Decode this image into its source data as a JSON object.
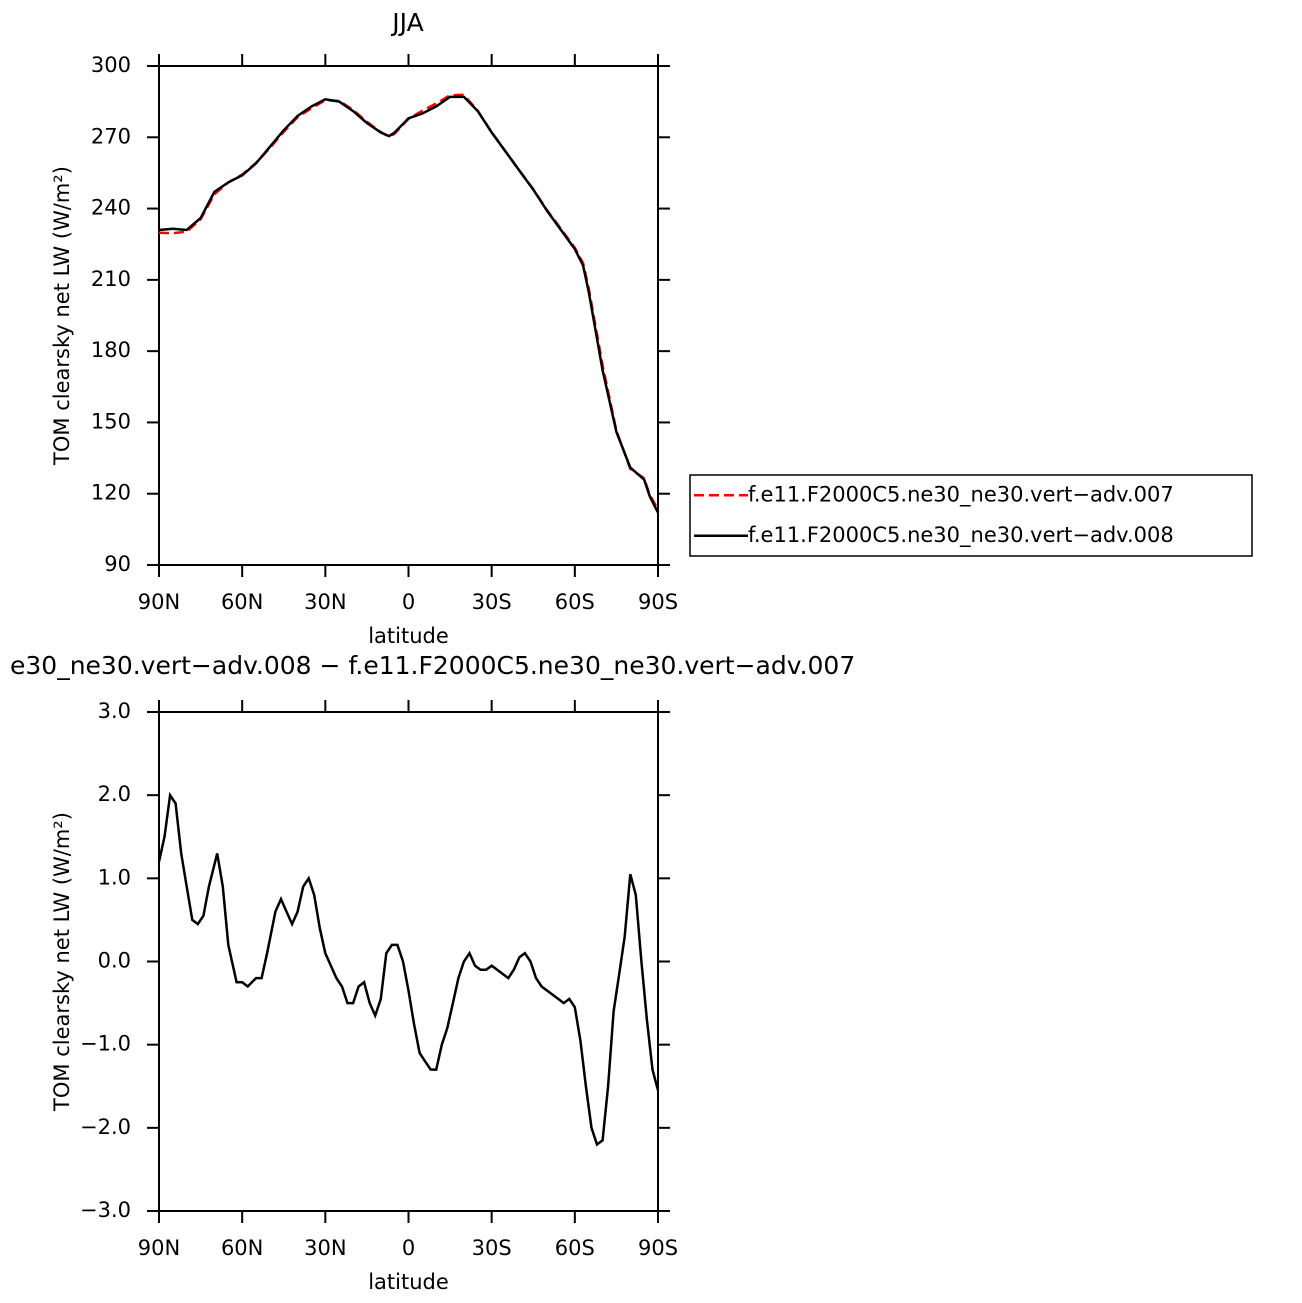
{
  "chart_data": [
    {
      "type": "line",
      "title": "JJA",
      "xlabel": "latitude",
      "ylabel": "TOM clearsky net LW (W/m²)",
      "xlim": [
        90,
        -90
      ],
      "xticks": [
        {
          "value": 90,
          "label": "90N"
        },
        {
          "value": 60,
          "label": "60N"
        },
        {
          "value": 30,
          "label": "30N"
        },
        0,
        {
          "value": -30,
          "label": "30S"
        },
        {
          "value": -60,
          "label": "60S"
        },
        {
          "value": -90,
          "label": "90S"
        }
      ],
      "ylim": [
        90,
        300
      ],
      "yticks": [
        90,
        120,
        150,
        180,
        210,
        240,
        270,
        300
      ],
      "legend": "right",
      "x": [
        90,
        85,
        80,
        75,
        70,
        65,
        60,
        55,
        50,
        45,
        40,
        35,
        30,
        25,
        20,
        15,
        10,
        7,
        5,
        0,
        -5,
        -10,
        -15,
        -20,
        -25,
        -30,
        -35,
        -40,
        -45,
        -50,
        -55,
        -60,
        -63,
        -65,
        -70,
        -75,
        -80,
        -85,
        -87,
        -90
      ],
      "series": [
        {
          "name": "f.e11.F2000C5.ne30_ne30.vert−adv.007",
          "color": "#ff0000",
          "line_style": "dashed",
          "values": [
            229.8,
            229.6,
            230.3,
            235.5,
            246,
            251,
            254.3,
            259.2,
            265.5,
            272.3,
            278.5,
            282.2,
            285.6,
            285.3,
            281.5,
            276.5,
            272.2,
            270.3,
            271.5,
            277.8,
            281.2,
            284.2,
            287.7,
            287.9,
            281.1,
            272.1,
            264.1,
            256,
            248.1,
            239.3,
            231.4,
            223.5,
            217,
            206.5,
            174,
            146.5,
            130.5,
            126.5,
            119.5,
            113.5
          ]
        },
        {
          "name": "f.e11.F2000C5.ne30_ne30.vert−adv.008",
          "color": "#000000",
          "line_style": "solid",
          "values": [
            231,
            231.5,
            231,
            236,
            247,
            251,
            254,
            259,
            266,
            273,
            279,
            283,
            286,
            285,
            281,
            276,
            272,
            270.5,
            272,
            278,
            280,
            283,
            287,
            287,
            281,
            272,
            264,
            256,
            248,
            239,
            231,
            223,
            216,
            205,
            172,
            146,
            131,
            126,
            119,
            112
          ]
        }
      ]
    },
    {
      "type": "line",
      "title": "e30_ne30.vert−adv.008 − f.e11.F2000C5.ne30_ne30.vert−adv.007",
      "xlabel": "latitude",
      "ylabel": "TOM clearsky net LW (W/m²)",
      "xlim": [
        90,
        -90
      ],
      "xticks": [
        {
          "value": 90,
          "label": "90N"
        },
        {
          "value": 60,
          "label": "60N"
        },
        {
          "value": 30,
          "label": "30N"
        },
        0,
        {
          "value": -30,
          "label": "30S"
        },
        {
          "value": -60,
          "label": "60S"
        },
        {
          "value": -90,
          "label": "90S"
        }
      ],
      "ylim": [
        -3,
        3
      ],
      "yticks": [
        {
          "value": -3,
          "label": "−3.0"
        },
        {
          "value": -2,
          "label": "−2.0"
        },
        {
          "value": -1,
          "label": "−1.0"
        },
        {
          "value": 0,
          "label": "0.0"
        },
        {
          "value": 1,
          "label": "1.0"
        },
        {
          "value": 2,
          "label": "2.0"
        },
        {
          "value": 3,
          "label": "3.0"
        }
      ],
      "x": [
        90,
        88,
        86,
        84,
        82,
        80,
        78,
        76,
        74,
        72,
        69,
        67,
        65,
        62,
        60,
        58,
        55,
        53,
        51,
        48,
        46,
        44,
        42,
        40,
        38,
        36,
        34,
        32,
        30,
        28,
        26,
        24,
        22,
        20,
        18,
        16,
        14,
        12,
        10,
        8,
        6,
        4,
        2,
        0,
        -2,
        -4,
        -6,
        -8,
        -10,
        -12,
        -14,
        -16,
        -18,
        -20,
        -22,
        -24,
        -26,
        -28,
        -30,
        -32,
        -34,
        -36,
        -38,
        -40,
        -42,
        -44,
        -46,
        -48,
        -50,
        -52,
        -54,
        -56,
        -58,
        -60,
        -62,
        -64,
        -66,
        -68,
        -70,
        -72,
        -74,
        -76,
        -78,
        -80,
        -82,
        -84,
        -86,
        -88,
        -90
      ],
      "series": [
        {
          "name": null,
          "color": "#000000",
          "line_style": "solid",
          "values": [
            1.2,
            1.5,
            2.0,
            1.9,
            1.3,
            0.9,
            0.5,
            0.45,
            0.55,
            0.9,
            1.3,
            0.9,
            0.2,
            -0.25,
            -0.25,
            -0.3,
            -0.2,
            -0.2,
            0.1,
            0.6,
            0.75,
            0.6,
            0.45,
            0.6,
            0.9,
            1.0,
            0.8,
            0.4,
            0.1,
            -0.05,
            -0.2,
            -0.3,
            -0.5,
            -0.5,
            -0.3,
            -0.25,
            -0.5,
            -0.65,
            -0.45,
            0.1,
            0.2,
            0.2,
            0.0,
            -0.35,
            -0.75,
            -1.1,
            -1.2,
            -1.3,
            -1.3,
            -1.0,
            -0.8,
            -0.5,
            -0.2,
            0.0,
            0.1,
            -0.05,
            -0.1,
            -0.1,
            -0.05,
            -0.1,
            -0.15,
            -0.2,
            -0.1,
            0.05,
            0.1,
            0.0,
            -0.2,
            -0.3,
            -0.35,
            -0.4,
            -0.45,
            -0.5,
            -0.45,
            -0.55,
            -0.95,
            -1.5,
            -2.0,
            -2.2,
            -2.15,
            -1.5,
            -0.6,
            -0.15,
            0.3,
            1.05,
            0.8,
            0.0,
            -0.7,
            -1.3,
            -1.55
          ]
        }
      ]
    }
  ]
}
